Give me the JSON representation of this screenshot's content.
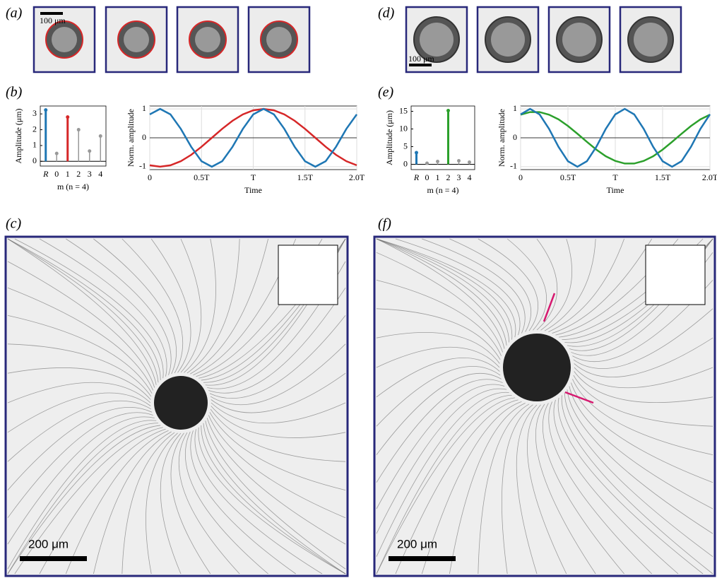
{
  "panel_labels": [
    "(a)",
    "(b)",
    "(c)",
    "(d)",
    "(e)",
    "(f)"
  ],
  "scale_bars": {
    "a": "100 μm",
    "c": "200 μm",
    "d": "100 μm",
    "f": "200 μm"
  },
  "chart_data": [
    {
      "type": "stem",
      "xlabel": "m (n = 4)",
      "ylabel": "Amplitude (μm)",
      "categories": [
        "R",
        "0",
        "1",
        "2",
        "3",
        "4"
      ],
      "values": [
        3.25,
        0.5,
        2.8,
        2.0,
        0.65,
        1.6
      ],
      "colors": [
        "#1f77b4",
        "#999999",
        "#d62728",
        "#999999",
        "#999999",
        "#999999"
      ],
      "ylim": [
        -0.3,
        3.5
      ],
      "yticks": [
        0,
        1,
        2,
        3
      ]
    },
    {
      "type": "line",
      "xlabel": "Time",
      "ylabel": "Norm. amplitude",
      "grid": true,
      "x": [
        0,
        0.1,
        0.2,
        0.3,
        0.4,
        0.5,
        0.6,
        0.7,
        0.8,
        0.9,
        1.0,
        1.1,
        1.2,
        1.3,
        1.4,
        1.5,
        1.6,
        1.7,
        1.8,
        1.9,
        2.0
      ],
      "xlim": [
        0,
        2
      ],
      "xticks": [
        0,
        {
          "value": 0.5,
          "label": "0.5T"
        },
        {
          "value": 1,
          "label": "T"
        },
        {
          "value": 1.5,
          "label": "1.5T"
        },
        {
          "value": 2,
          "label": "2.0T"
        }
      ],
      "ylim": [
        -1.1,
        1.1
      ],
      "yticks": [
        -1,
        0,
        1
      ],
      "series": [
        {
          "color": "#d62728",
          "values": [
            -0.95,
            -1,
            -0.95,
            -0.81,
            -0.59,
            -0.31,
            0,
            0.31,
            0.59,
            0.81,
            0.95,
            1,
            0.95,
            0.81,
            0.59,
            0.31,
            0,
            -0.31,
            -0.59,
            -0.81,
            -0.95
          ]
        },
        {
          "color": "#1f77b4",
          "values": [
            0.81,
            1,
            0.81,
            0.31,
            -0.31,
            -0.81,
            -1,
            -0.81,
            -0.31,
            0.31,
            0.81,
            1,
            0.81,
            0.31,
            -0.31,
            -0.81,
            -1,
            -0.81,
            -0.31,
            0.31,
            0.81
          ]
        }
      ]
    },
    {
      "type": "stem",
      "xlabel": "m (n = 4)",
      "ylabel": "Amplitude (μm)",
      "categories": [
        "R",
        "0",
        "1",
        "2",
        "3",
        "4"
      ],
      "values": [
        3.3,
        0.3,
        0.8,
        15.2,
        1.0,
        0.6
      ],
      "colors": [
        "#1f77b4",
        "#999999",
        "#999999",
        "#2ca02c",
        "#999999",
        "#999999"
      ],
      "ylim": [
        -1.5,
        16.5
      ],
      "yticks": [
        0,
        5,
        10,
        15
      ]
    },
    {
      "type": "line",
      "xlabel": "Time",
      "ylabel": "Norm. amplitude",
      "grid": true,
      "x": [
        0,
        0.1,
        0.2,
        0.3,
        0.4,
        0.5,
        0.6,
        0.7,
        0.8,
        0.9,
        1.0,
        1.1,
        1.2,
        1.3,
        1.4,
        1.5,
        1.6,
        1.7,
        1.8,
        1.9,
        2.0
      ],
      "xlim": [
        0,
        2
      ],
      "xticks": [
        0,
        {
          "value": 0.5,
          "label": "0.5T"
        },
        {
          "value": 1,
          "label": "T"
        },
        {
          "value": 1.5,
          "label": "1.5T"
        },
        {
          "value": 2,
          "label": "2.0T"
        }
      ],
      "ylim": [
        -1.1,
        1.1
      ],
      "yticks": [
        -1,
        0,
        1
      ],
      "series": [
        {
          "color": "#2ca02c",
          "values": [
            0.8,
            0.89,
            0.89,
            0.8,
            0.64,
            0.41,
            0.14,
            -0.14,
            -0.41,
            -0.64,
            -0.8,
            -0.89,
            -0.89,
            -0.8,
            -0.64,
            -0.41,
            -0.14,
            0.14,
            0.41,
            0.64,
            0.8
          ]
        },
        {
          "color": "#1f77b4",
          "values": [
            0.81,
            1,
            0.81,
            0.31,
            -0.31,
            -0.81,
            -1,
            -0.81,
            -0.31,
            0.31,
            0.81,
            1,
            0.81,
            0.31,
            -0.31,
            -0.81,
            -1,
            -0.81,
            -0.31,
            0.31,
            0.81
          ]
        }
      ]
    }
  ]
}
